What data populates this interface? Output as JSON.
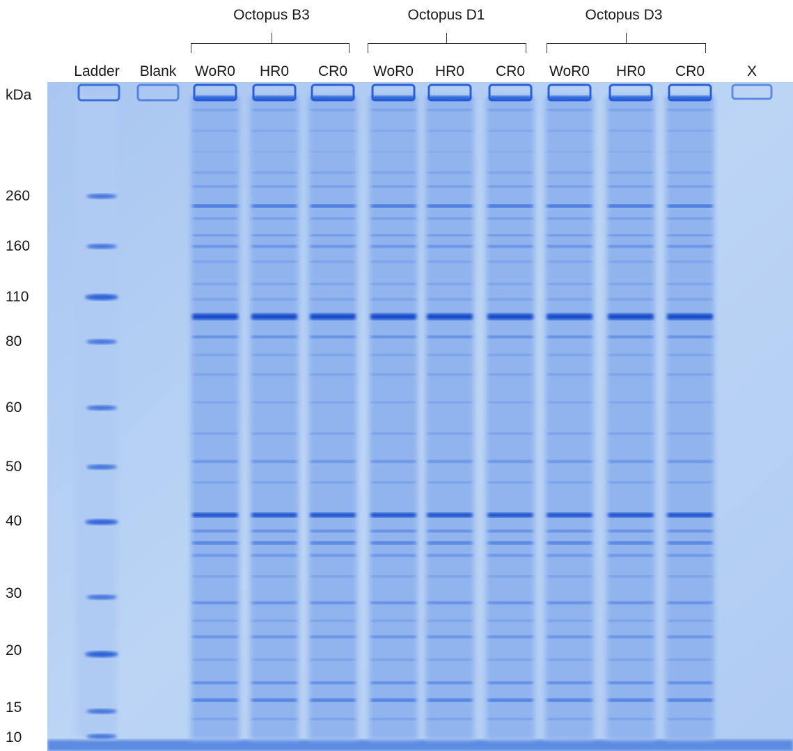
{
  "groups": [
    {
      "label": "Octopus B3"
    },
    {
      "label": "Octopus D1"
    },
    {
      "label": "Octopus D3"
    }
  ],
  "lanes": [
    {
      "label": "Ladder"
    },
    {
      "label": "Blank"
    },
    {
      "label": "WoR0"
    },
    {
      "label": "HR0"
    },
    {
      "label": "CR0"
    },
    {
      "label": "WoR0"
    },
    {
      "label": "HR0"
    },
    {
      "label": "CR0"
    },
    {
      "label": "WoR0"
    },
    {
      "label": "HR0"
    },
    {
      "label": "CR0"
    },
    {
      "label": "X"
    }
  ],
  "mw_axis": {
    "unit": "kDa",
    "markers": [
      "260",
      "160",
      "110",
      "80",
      "60",
      "50",
      "40",
      "30",
      "20",
      "15",
      "10"
    ]
  },
  "colors": {
    "gel_background": "#b9d3f4",
    "lane_fill": "#8fb2ee",
    "band": "#1f58d6",
    "band_strong": "#0e45c9"
  }
}
